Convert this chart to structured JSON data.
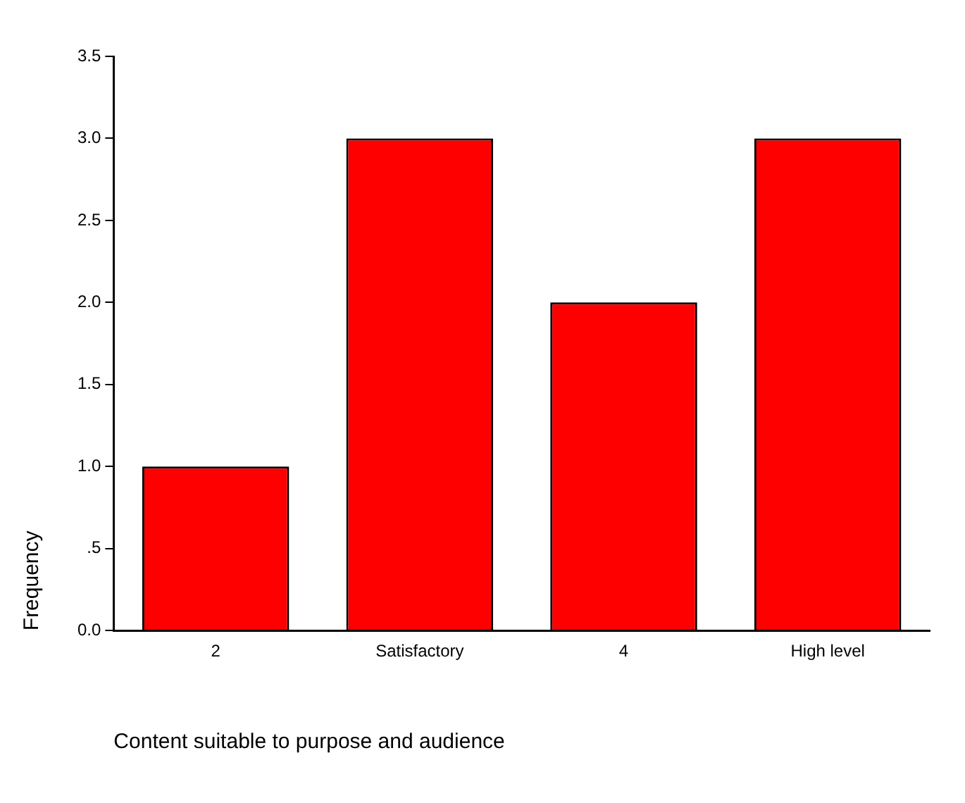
{
  "chart_data": {
    "type": "bar",
    "xlabel": "Content suitable to purpose and audience",
    "ylabel": "Frequency",
    "categories": [
      "2",
      "Satisfactory",
      "4",
      "High level"
    ],
    "values": [
      1,
      3,
      2,
      3
    ],
    "color": "#ff0000",
    "ylim": [
      0,
      3.5
    ],
    "yticks": [
      {
        "value": 0,
        "label": "0.0"
      },
      {
        "value": 0.5,
        "label": ".5"
      },
      {
        "value": 1,
        "label": "1.0"
      },
      {
        "value": 1.5,
        "label": "1.5"
      },
      {
        "value": 2,
        "label": "2.0"
      },
      {
        "value": 2.5,
        "label": "2.5"
      },
      {
        "value": 3,
        "label": "3.0"
      },
      {
        "value": 3.5,
        "label": "3.5"
      }
    ],
    "grid": false,
    "legend": false
  }
}
